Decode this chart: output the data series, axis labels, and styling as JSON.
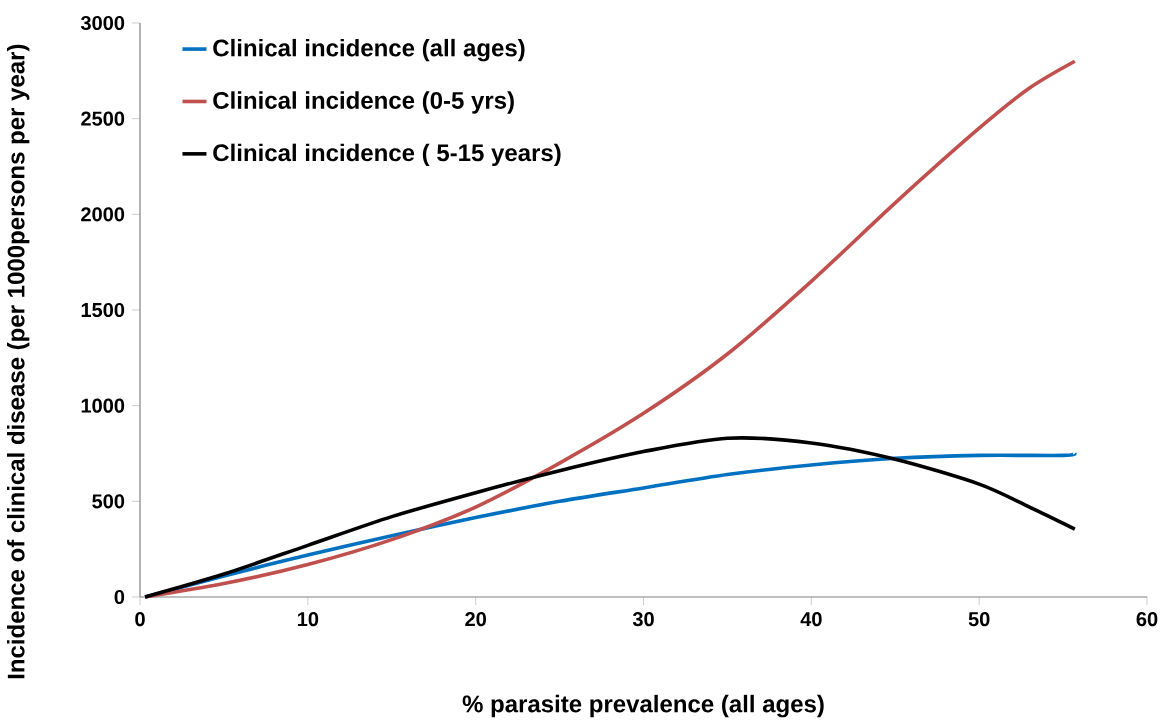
{
  "chart_data": {
    "type": "line",
    "xlabel": "% parasite prevalence (all ages)",
    "ylabel": "Incidence of clinical disease (per 1000persons per year)",
    "xlim": [
      0,
      60
    ],
    "xticks": [
      0,
      10,
      20,
      30,
      40,
      50,
      60
    ],
    "ylim": [
      0,
      3000
    ],
    "yticks": [
      0,
      500,
      1000,
      1500,
      2000,
      2500,
      3000
    ],
    "grid": false,
    "legend": "top left",
    "marker": "none",
    "line_style": "solid",
    "series": [
      {
        "name": "Clinical incidence (all ages)",
        "color": "#0070c0",
        "x": [
          0.3,
          5,
          10,
          15,
          20,
          25,
          30,
          35,
          40,
          45,
          50,
          55,
          55.7
        ],
        "values": [
          0,
          110,
          220,
          320,
          415,
          500,
          570,
          640,
          690,
          725,
          740,
          740,
          750
        ]
      },
      {
        "name": "Clinical incidence (0-5 yrs)",
        "color": "#c0504d",
        "x": [
          0.3,
          5,
          10,
          15,
          20,
          25,
          30,
          35,
          40,
          45,
          50,
          53,
          55.7
        ],
        "values": [
          0,
          70,
          170,
          300,
          470,
          700,
          960,
          1270,
          1650,
          2060,
          2450,
          2660,
          2800
        ]
      },
      {
        "name": "Clinical incidence ( 5-15 years)",
        "color": "#000000",
        "x": [
          0.3,
          5,
          10,
          15,
          20,
          25,
          30,
          35,
          40,
          45,
          50,
          53,
          55.7
        ],
        "values": [
          0,
          120,
          270,
          420,
          545,
          660,
          760,
          830,
          805,
          720,
          590,
          470,
          355
        ]
      }
    ]
  }
}
